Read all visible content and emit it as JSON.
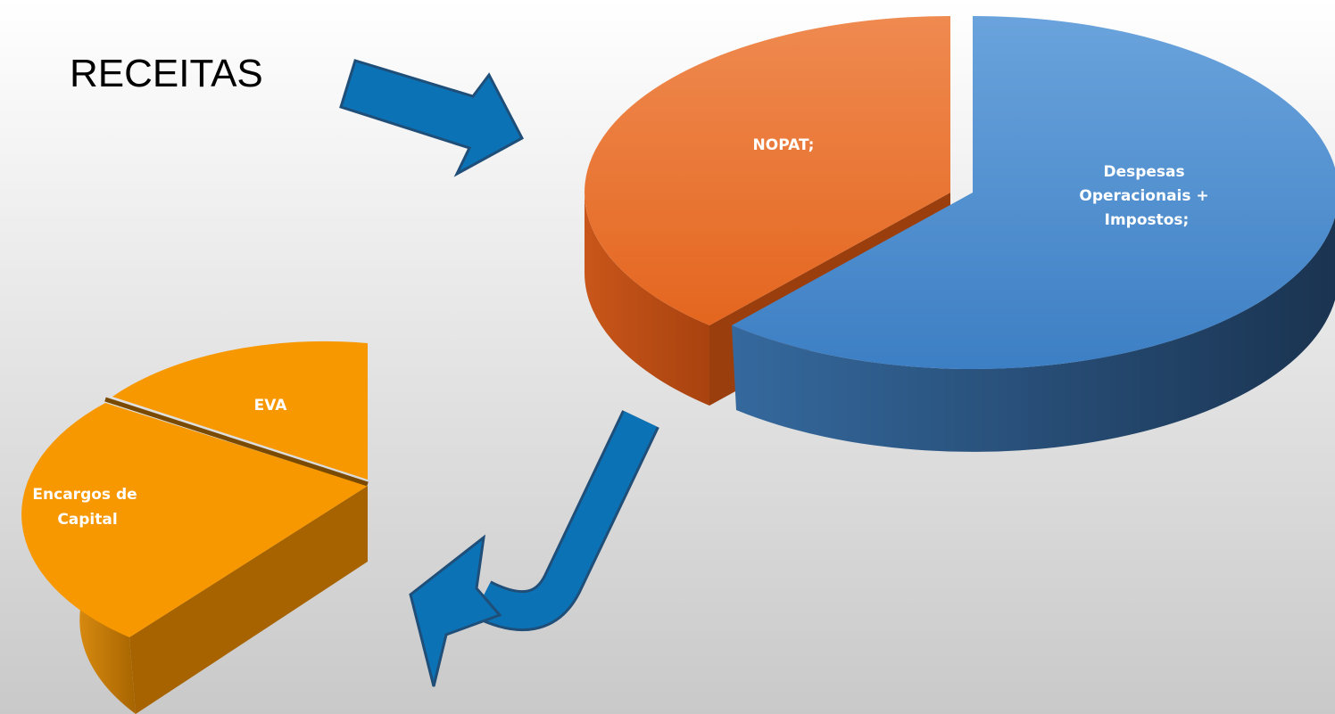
{
  "title": "RECEITAS",
  "pies": [
    {
      "slices": [
        {
          "label": [
            "NOPAT;"
          ]
        },
        {
          "label": [
            "Despesas",
            "Operacionais +",
            "Impostos;"
          ]
        }
      ]
    },
    {
      "slices": [
        {
          "label": [
            "EVA"
          ]
        },
        {
          "label": [
            "Encargos de",
            "Capital"
          ]
        }
      ]
    }
  ]
}
